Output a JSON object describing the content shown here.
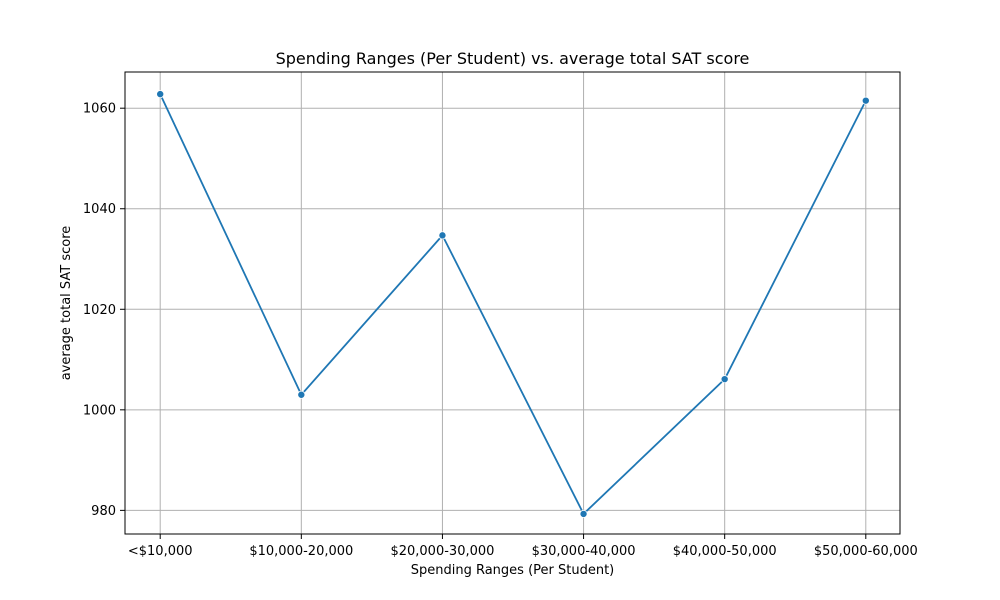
{
  "chart_data": {
    "type": "line",
    "title": "Spending Ranges (Per Student) vs. average total SAT score",
    "xlabel": "Spending Ranges (Per Student)",
    "ylabel": "average total SAT score",
    "categories": [
      "<$10,000",
      "$10,000-20,000",
      "$20,000-30,000",
      "$30,000-40,000",
      "$40,000-50,000",
      "$50,000-60,000"
    ],
    "series": [
      {
        "values": [
          1062.8,
          1003.0,
          1034.7,
          979.3,
          1006.1,
          1061.5
        ],
        "color": "#1f77b4",
        "marker": "circle"
      }
    ],
    "yticks": [
      980,
      1000,
      1020,
      1040,
      1060
    ],
    "ylim": [
      975.3,
      1067.2
    ],
    "grid": true,
    "legend": "none"
  }
}
